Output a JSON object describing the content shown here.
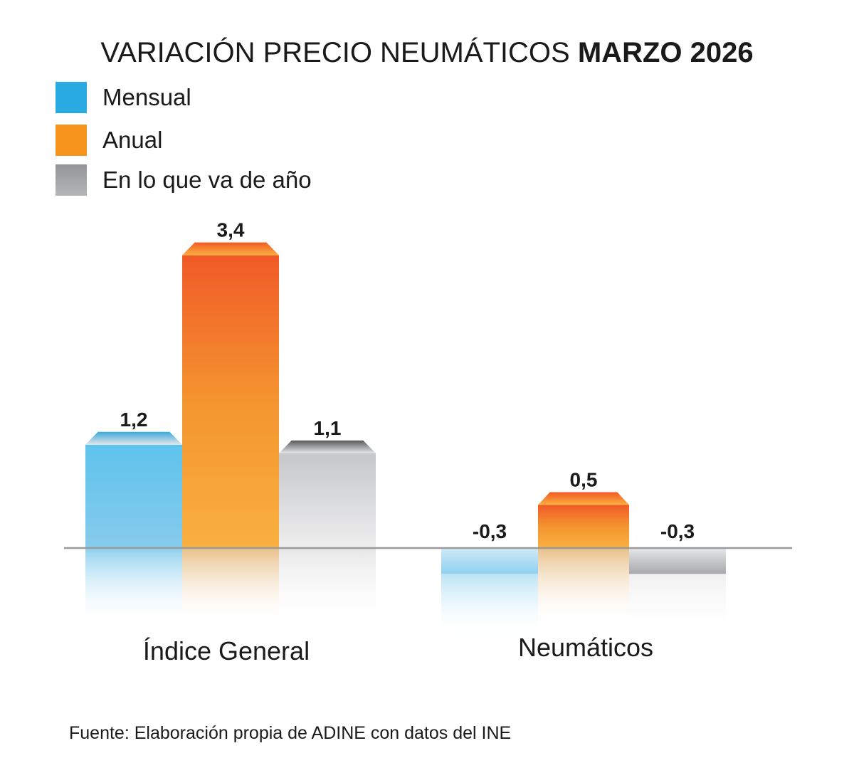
{
  "chart_data": {
    "type": "bar",
    "title": "VARIACIÓN PRECIO NEUMÁTICOS",
    "title_bold": "MARZO 2026",
    "categories": [
      "Índice General",
      "Neumáticos"
    ],
    "series": [
      {
        "name": "Mensual",
        "values": [
          1.2,
          -0.3
        ],
        "color": "#29abe2"
      },
      {
        "name": "Anual",
        "values": [
          3.4,
          0.5
        ],
        "color": "#f7941d"
      },
      {
        "name": "En lo que va de año",
        "values": [
          1.1,
          -0.3
        ],
        "color": "#939598"
      }
    ],
    "data_labels": [
      [
        "1,2",
        "-0,3"
      ],
      [
        "3,4",
        "0,5"
      ],
      [
        "1,1",
        "-0,3"
      ]
    ],
    "legend_position": "top-left",
    "grid": false,
    "source": "Fuente: Elaboración propia de ADINE con datos del INE"
  }
}
